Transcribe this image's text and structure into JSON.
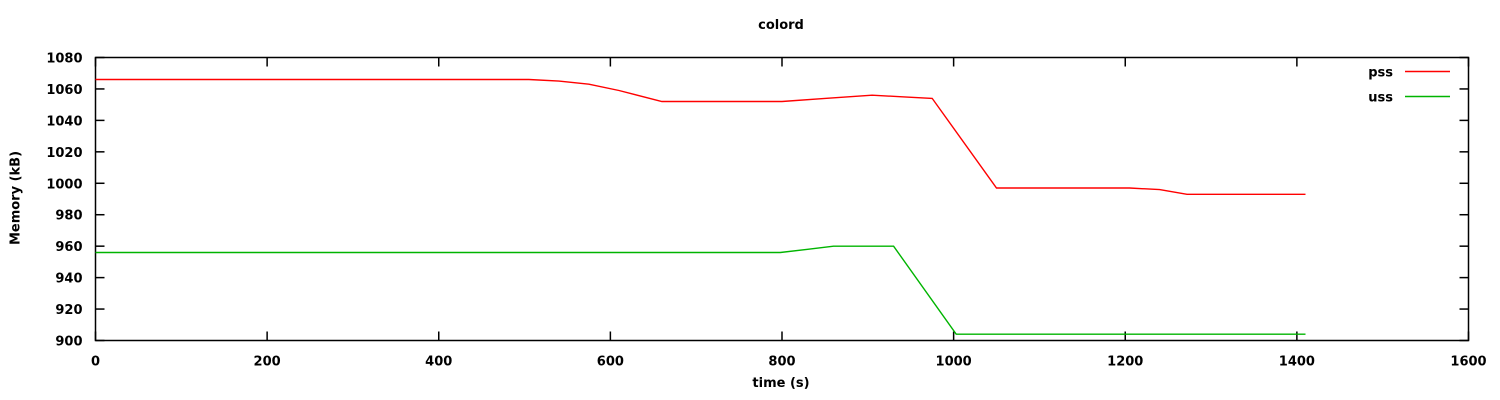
{
  "chart_data": {
    "type": "line",
    "title": "colord",
    "xlabel": "time (s)",
    "ylabel": "Memory (kB)",
    "xlim": [
      0,
      1600
    ],
    "ylim": [
      900,
      1080
    ],
    "xticks": [
      0,
      200,
      400,
      600,
      800,
      1000,
      1200,
      1400,
      1600
    ],
    "yticks": [
      900,
      920,
      940,
      960,
      980,
      1000,
      1020,
      1040,
      1060,
      1080
    ],
    "grid": false,
    "legend_position": "top-right-inside",
    "background_color": "#ffffff",
    "axis_color": "#000000",
    "text_color": "#000000",
    "series": [
      {
        "name": "pss",
        "color": "#ff0000",
        "points": [
          [
            0,
            1066
          ],
          [
            505,
            1066
          ],
          [
            540,
            1065
          ],
          [
            575,
            1063
          ],
          [
            610,
            1059
          ],
          [
            660,
            1052
          ],
          [
            800,
            1052
          ],
          [
            850,
            1054
          ],
          [
            905,
            1056
          ],
          [
            940,
            1055
          ],
          [
            975,
            1054
          ],
          [
            1050,
            997
          ],
          [
            1205,
            997
          ],
          [
            1240,
            996
          ],
          [
            1272,
            993
          ],
          [
            1410,
            993
          ]
        ]
      },
      {
        "name": "uss",
        "color": "#00b400",
        "points": [
          [
            0,
            956
          ],
          [
            798,
            956
          ],
          [
            830,
            958
          ],
          [
            860,
            960
          ],
          [
            930,
            960
          ],
          [
            1003,
            904
          ],
          [
            1410,
            904
          ]
        ]
      }
    ]
  }
}
